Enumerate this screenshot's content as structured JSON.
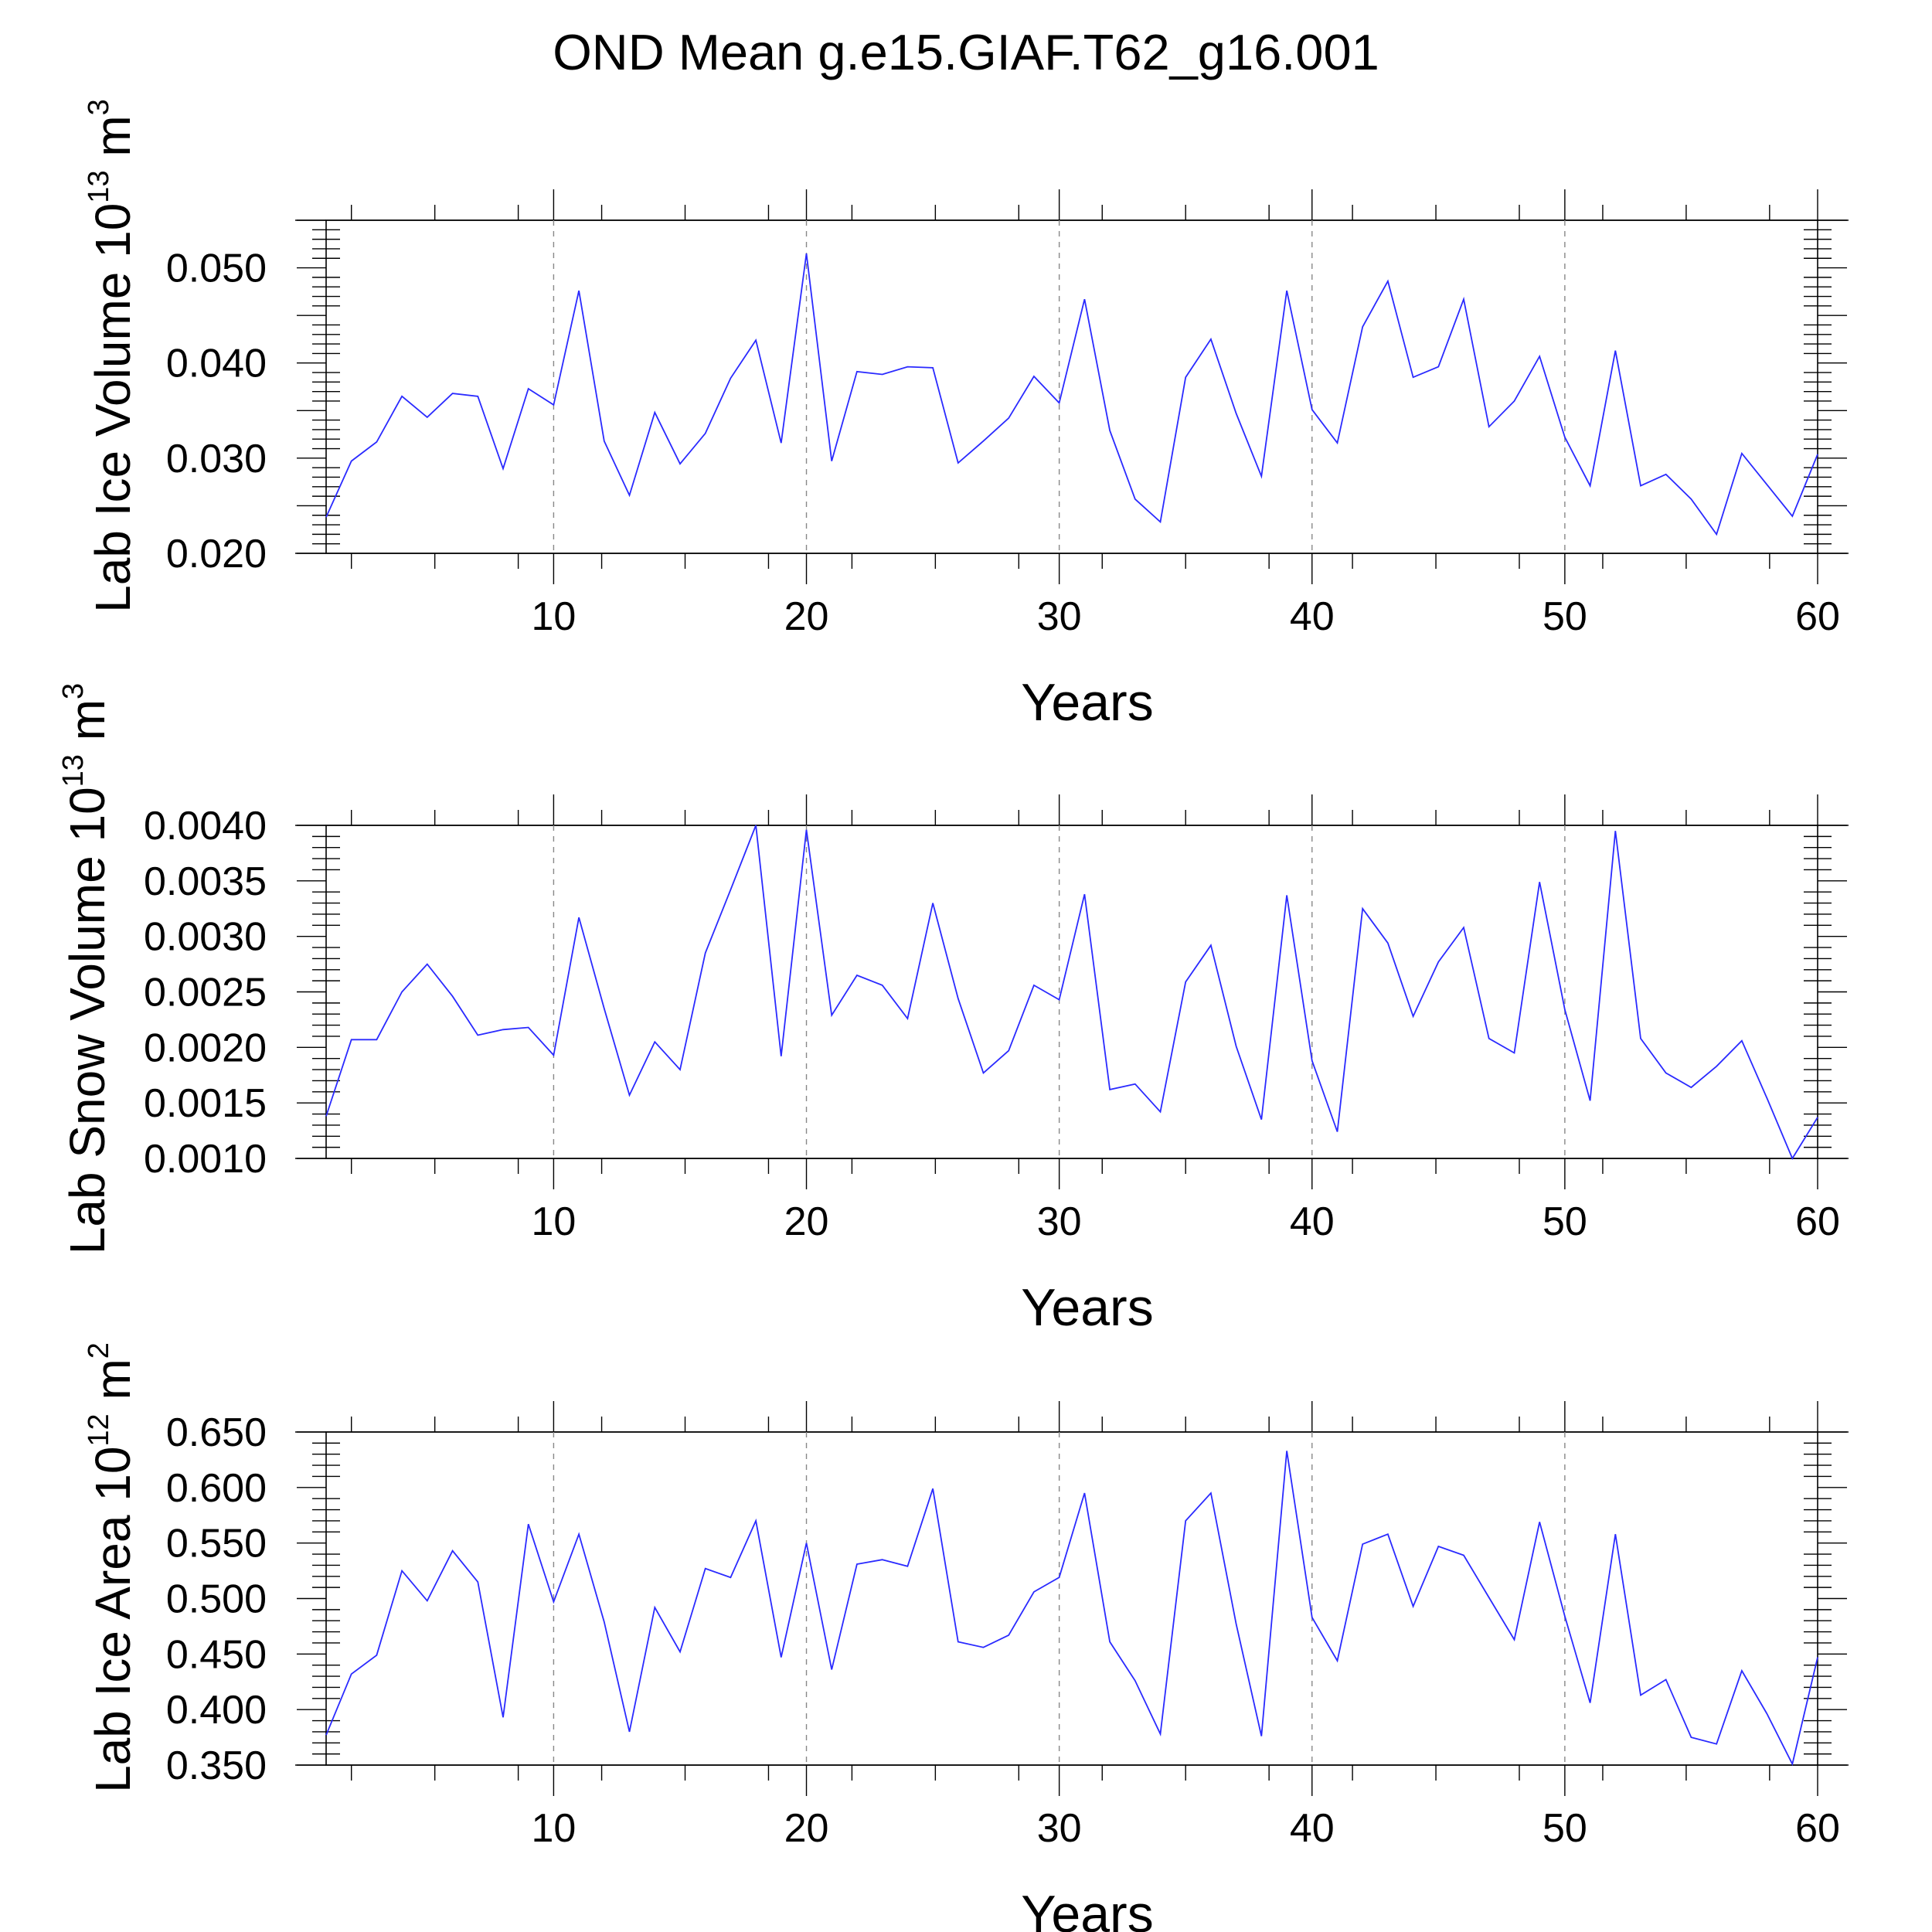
{
  "title": "OND Mean g.e15.GIAF.T62_g16.001",
  "chart_data": [
    {
      "type": "line",
      "title": "",
      "xlabel": "Years",
      "ylabel_main": "Lab Ice Volume 10",
      "ylabel_exp": "13",
      "ylabel_unit": " m",
      "ylabel_unit_exp": "3",
      "xlim": [
        1,
        60
      ],
      "ylim": [
        0.02,
        0.055
      ],
      "xticks": [
        10,
        20,
        30,
        40,
        50,
        60
      ],
      "yticks": [
        0.02,
        0.03,
        0.04,
        0.05
      ],
      "ytick_labels": [
        "0.020",
        "0.030",
        "0.040",
        "0.050"
      ],
      "ymajor_step": 0.005,
      "yminor_step": 0.001,
      "x": [
        1,
        2,
        3,
        4,
        5,
        6,
        7,
        8,
        9,
        10,
        11,
        12,
        13,
        14,
        15,
        16,
        17,
        18,
        19,
        20,
        21,
        22,
        23,
        24,
        25,
        26,
        27,
        28,
        29,
        30,
        31,
        32,
        33,
        34,
        35,
        36,
        37,
        38,
        39,
        40,
        41,
        42,
        43,
        44,
        45,
        46,
        47,
        48,
        49,
        50,
        51,
        52,
        53,
        54,
        55,
        56,
        57,
        58,
        59,
        60
      ],
      "series": [
        {
          "name": "Lab Ice Volume",
          "color": "#2a2aff",
          "values": [
            0.0238,
            0.0297,
            0.0317,
            0.0365,
            0.0343,
            0.0368,
            0.0365,
            0.0289,
            0.0373,
            0.0356,
            0.0476,
            0.0318,
            0.0261,
            0.0348,
            0.0294,
            0.0326,
            0.0384,
            0.0424,
            0.0316,
            0.0515,
            0.0297,
            0.0391,
            0.0388,
            0.0396,
            0.0395,
            0.0295,
            0.0318,
            0.0342,
            0.0386,
            0.0358,
            0.0467,
            0.0329,
            0.0257,
            0.0233,
            0.0385,
            0.0425,
            0.0347,
            0.0281,
            0.0476,
            0.0351,
            0.0316,
            0.0438,
            0.0486,
            0.0385,
            0.0396,
            0.0467,
            0.0333,
            0.036,
            0.0407,
            0.0322,
            0.0271,
            0.0413,
            0.0271,
            0.0283,
            0.0257,
            0.022,
            0.0305,
            0.0272,
            0.0239,
            0.0304
          ]
        }
      ]
    },
    {
      "type": "line",
      "title": "",
      "xlabel": "Years",
      "ylabel_main": "Lab Snow Volume 10",
      "ylabel_exp": "13",
      "ylabel_unit": " m",
      "ylabel_unit_exp": "3",
      "xlim": [
        1,
        60
      ],
      "ylim": [
        0.001,
        0.004
      ],
      "xticks": [
        10,
        20,
        30,
        40,
        50,
        60
      ],
      "yticks": [
        0.001,
        0.0015,
        0.002,
        0.0025,
        0.003,
        0.0035,
        0.004
      ],
      "ytick_labels": [
        "0.0010",
        "0.0015",
        "0.0020",
        "0.0025",
        "0.0030",
        "0.0035",
        "0.0040"
      ],
      "ymajor_step": 0.0005,
      "yminor_step": 0.0001,
      "x": [
        1,
        2,
        3,
        4,
        5,
        6,
        7,
        8,
        9,
        10,
        11,
        12,
        13,
        14,
        15,
        16,
        17,
        18,
        19,
        20,
        21,
        22,
        23,
        24,
        25,
        26,
        27,
        28,
        29,
        30,
        31,
        32,
        33,
        34,
        35,
        36,
        37,
        38,
        39,
        40,
        41,
        42,
        43,
        44,
        45,
        46,
        47,
        48,
        49,
        50,
        51,
        52,
        53,
        54,
        55,
        56,
        57,
        58,
        59,
        60
      ],
      "series": [
        {
          "name": "Lab Snow Volume",
          "color": "#2a2aff",
          "values": [
            0.00138,
            0.00207,
            0.00207,
            0.0025,
            0.00275,
            0.00246,
            0.00211,
            0.00216,
            0.00218,
            0.00193,
            0.00317,
            0.00235,
            0.00157,
            0.00205,
            0.0018,
            0.00285,
            0.00342,
            0.004,
            0.00192,
            0.00396,
            0.00229,
            0.00265,
            0.00256,
            0.00226,
            0.0033,
            0.00244,
            0.00177,
            0.00197,
            0.00256,
            0.00243,
            0.00338,
            0.00162,
            0.00167,
            0.00142,
            0.00259,
            0.00292,
            0.00201,
            0.00135,
            0.00337,
            0.00188,
            0.00124,
            0.00325,
            0.00294,
            0.00228,
            0.00277,
            0.00308,
            0.00208,
            0.00195,
            0.00349,
            0.00234,
            0.00152,
            0.00395,
            0.00208,
            0.00177,
            0.00164,
            0.00183,
            0.00206,
            0.00154,
            0.001,
            0.00137
          ]
        }
      ]
    },
    {
      "type": "line",
      "title": "",
      "xlabel": "Years",
      "ylabel_main": "Lab Ice Area 10",
      "ylabel_exp": "12",
      "ylabel_unit": " m",
      "ylabel_unit_exp": "2",
      "xlim": [
        1,
        60
      ],
      "ylim": [
        0.35,
        0.65
      ],
      "xticks": [
        10,
        20,
        30,
        40,
        50,
        60
      ],
      "yticks": [
        0.35,
        0.4,
        0.45,
        0.5,
        0.55,
        0.6,
        0.65
      ],
      "ytick_labels": [
        "0.350",
        "0.400",
        "0.450",
        "0.500",
        "0.550",
        "0.600",
        "0.650"
      ],
      "ymajor_step": 0.05,
      "yminor_step": 0.01,
      "x": [
        1,
        2,
        3,
        4,
        5,
        6,
        7,
        8,
        9,
        10,
        11,
        12,
        13,
        14,
        15,
        16,
        17,
        18,
        19,
        20,
        21,
        22,
        23,
        24,
        25,
        26,
        27,
        28,
        29,
        30,
        31,
        32,
        33,
        34,
        35,
        36,
        37,
        38,
        39,
        40,
        41,
        42,
        43,
        44,
        45,
        46,
        47,
        48,
        49,
        50,
        51,
        52,
        53,
        54,
        55,
        56,
        57,
        58,
        59,
        60
      ],
      "series": [
        {
          "name": "Lab Ice Area",
          "color": "#2a2aff",
          "values": [
            0.377,
            0.432,
            0.449,
            0.525,
            0.498,
            0.543,
            0.515,
            0.393,
            0.567,
            0.497,
            0.558,
            0.479,
            0.38,
            0.492,
            0.452,
            0.527,
            0.519,
            0.57,
            0.447,
            0.55,
            0.436,
            0.531,
            0.535,
            0.529,
            0.599,
            0.461,
            0.456,
            0.467,
            0.506,
            0.519,
            0.595,
            0.461,
            0.426,
            0.378,
            0.57,
            0.595,
            0.477,
            0.376,
            0.633,
            0.483,
            0.444,
            0.549,
            0.558,
            0.493,
            0.547,
            0.539,
            0.501,
            0.463,
            0.569,
            0.484,
            0.406,
            0.558,
            0.413,
            0.427,
            0.375,
            0.369,
            0.435,
            0.396,
            0.351,
            0.447
          ]
        }
      ]
    }
  ]
}
